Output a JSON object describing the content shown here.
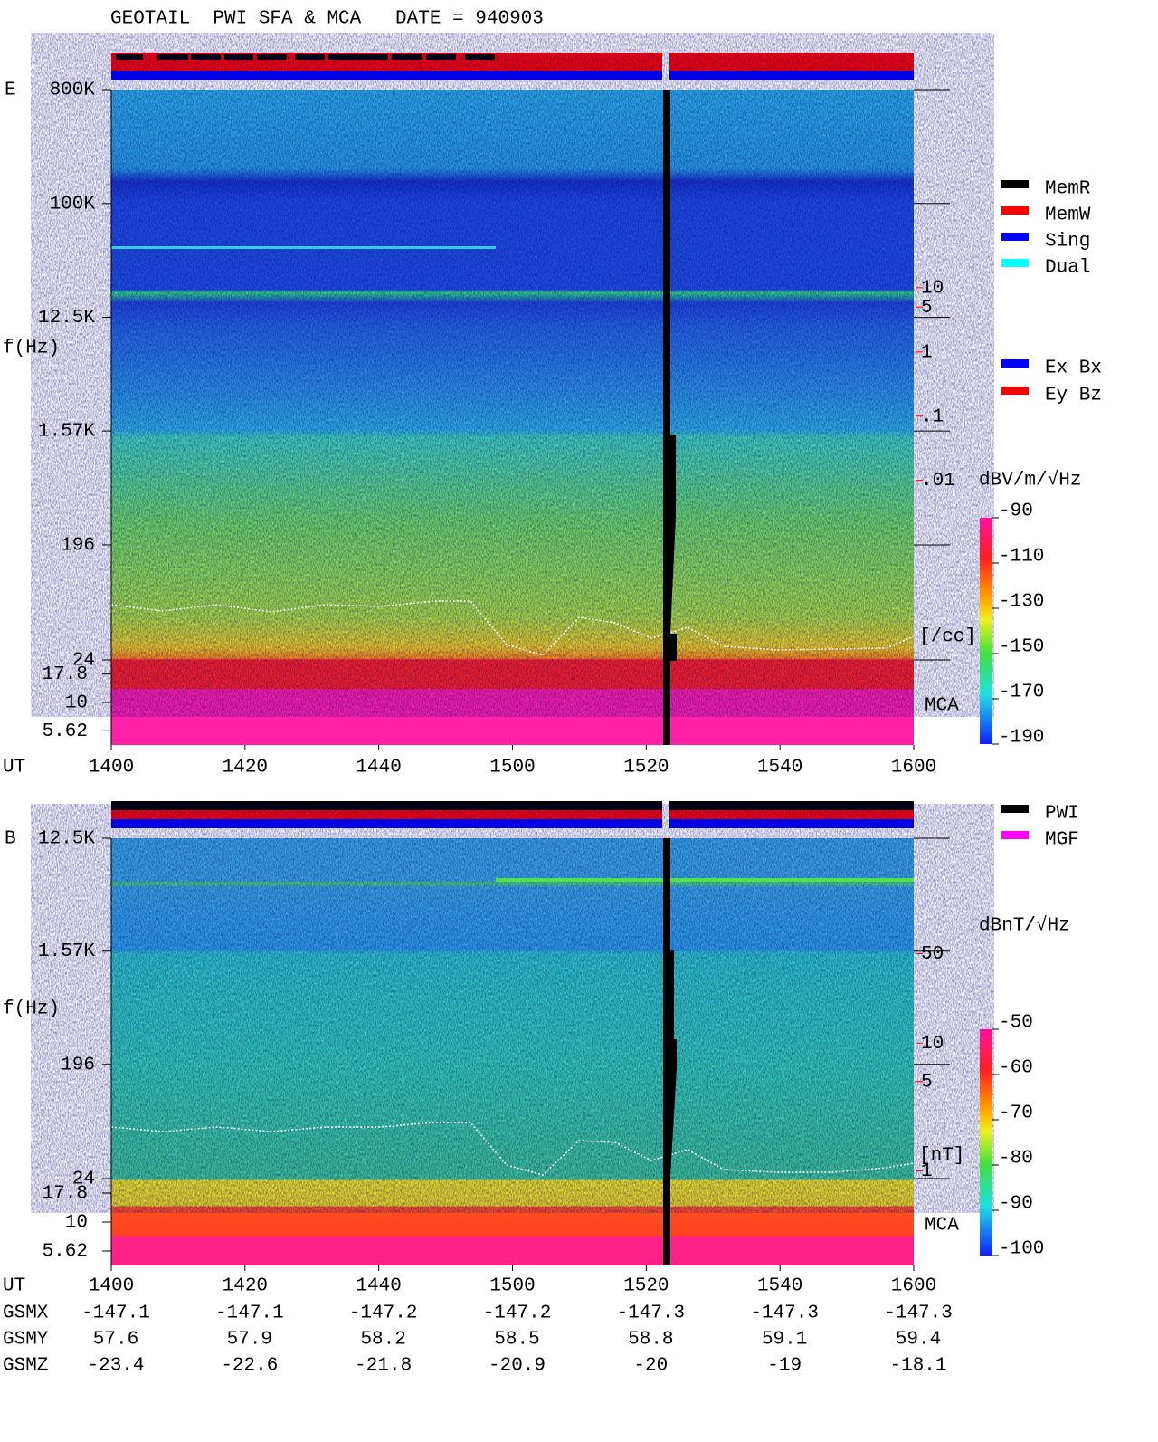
{
  "header": {
    "title": "GEOTAIL  PWI SFA & MCA   DATE = 940903"
  },
  "chart_data": [
    {
      "type": "spectrogram",
      "panel_label": "E",
      "y_label": "f(Hz)",
      "x_label": "UT",
      "x_tick_labels": [
        "1400",
        "1420",
        "1440",
        "1500",
        "1520",
        "1540",
        "1600"
      ],
      "log_y": true,
      "ylim": [
        24,
        800000
      ],
      "yticks": [
        {
          "value": 800000,
          "label": "800K"
        },
        {
          "value": 100000,
          "label": "100K"
        },
        {
          "value": 12500,
          "label": "12.5K"
        },
        {
          "value": 1570,
          "label": "1.57K"
        },
        196,
        24
      ],
      "mca_label": "MCA",
      "mca_ticks": [
        17.8,
        10,
        5.62
      ],
      "y2_color": "#ff0000",
      "y2lim": [
        1.6e-05,
        12200
      ],
      "y2ticks": [
        10,
        5,
        1,
        {
          "value": 0.1,
          "label": ".1"
        },
        {
          "value": 0.01,
          "label": ".01"
        }
      ],
      "y2_label": "[/cc]",
      "colorbar": {
        "label": "dBV/m/√Hz",
        "clim": [
          -190,
          -90
        ],
        "ticks": [
          -90,
          -110,
          -130,
          -150,
          -170,
          -190
        ]
      },
      "status_legend": [
        {
          "name": "MemR",
          "color": "#000000"
        },
        {
          "name": "MemW",
          "color": "#ff0000"
        },
        {
          "name": "Sing",
          "color": "#0000ff"
        },
        {
          "name": "Dual",
          "color": "#00ffff"
        }
      ],
      "component_legend": [
        {
          "name": "Ex Bx",
          "color": "#0000ff"
        },
        {
          "name": "Ey Bz",
          "color": "#ff0000"
        }
      ]
    },
    {
      "type": "spectrogram",
      "panel_label": "B",
      "y_label": "f(Hz)",
      "x_label": "UT",
      "x_tick_labels": [
        "1400",
        "1420",
        "1440",
        "1500",
        "1520",
        "1540",
        "1600"
      ],
      "log_y": true,
      "ylim": [
        24,
        12500
      ],
      "yticks": [
        {
          "value": 12500,
          "label": "12.5K"
        },
        {
          "value": 1570,
          "label": "1.57K"
        },
        196,
        24
      ],
      "mca_label": "MCA",
      "mca_ticks": [
        17.8,
        10,
        5.62
      ],
      "y2_color": "#ff0000",
      "y2lim": [
        0.87,
        400
      ],
      "y2ticks": [
        50,
        10,
        5,
        1
      ],
      "y2_label": "[nT]",
      "colorbar": {
        "label": "dBnT/√Hz",
        "clim": [
          -100,
          -50
        ],
        "ticks": [
          -50,
          -60,
          -70,
          -80,
          -90,
          -100
        ]
      },
      "status_legend": [
        {
          "name": "PWI",
          "color": "#000000"
        },
        {
          "name": "MGF",
          "color": "#ff00ff"
        }
      ]
    }
  ],
  "orbit": {
    "rows": [
      {
        "name": "GSMX",
        "values": [
          -147.1,
          -147.1,
          -147.2,
          -147.2,
          -147.3,
          -147.3,
          -147.3
        ]
      },
      {
        "name": "GSMY",
        "values": [
          57.6,
          57.9,
          58.2,
          58.5,
          58.8,
          59.1,
          59.4
        ]
      },
      {
        "name": "GSMZ",
        "values": [
          -23.4,
          -22.6,
          -21.8,
          -20.9,
          -20.0,
          -19.0,
          -18.1
        ]
      }
    ]
  }
}
